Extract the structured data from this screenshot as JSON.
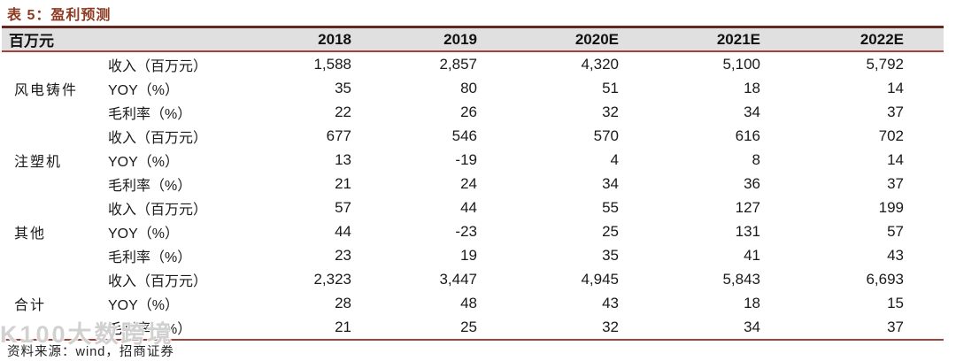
{
  "title": "表 5：盈利预测",
  "table": {
    "unit_header": "百万元",
    "year_headers": [
      "2018",
      "2019",
      "2020E",
      "2021E",
      "2022E"
    ],
    "groups": [
      {
        "name": "风电铸件",
        "rows": [
          {
            "metric": "收入（百万元）",
            "values": [
              "1,588",
              "2,857",
              "4,320",
              "5,100",
              "5,792"
            ]
          },
          {
            "metric": "YOY（%）",
            "values": [
              "35",
              "80",
              "51",
              "18",
              "14"
            ]
          },
          {
            "metric": "毛利率（%）",
            "values": [
              "22",
              "26",
              "32",
              "34",
              "37"
            ]
          }
        ]
      },
      {
        "name": "注塑机",
        "rows": [
          {
            "metric": "收入（百万元）",
            "values": [
              "677",
              "546",
              "570",
              "616",
              "702"
            ]
          },
          {
            "metric": "YOY（%）",
            "values": [
              "13",
              "-19",
              "4",
              "8",
              "14"
            ]
          },
          {
            "metric": "毛利率（%）",
            "values": [
              "21",
              "24",
              "34",
              "36",
              "37"
            ]
          }
        ]
      },
      {
        "name": "其他",
        "rows": [
          {
            "metric": "收入（百万元）",
            "values": [
              "57",
              "44",
              "55",
              "127",
              "199"
            ]
          },
          {
            "metric": "YOY（%）",
            "values": [
              "44",
              "-23",
              "25",
              "131",
              "57"
            ]
          },
          {
            "metric": "毛利率（%）",
            "values": [
              "23",
              "19",
              "35",
              "41",
              "43"
            ]
          }
        ]
      },
      {
        "name": "合计",
        "rows": [
          {
            "metric": "收入（百万元）",
            "values": [
              "2,323",
              "3,447",
              "4,945",
              "5,843",
              "6,693"
            ]
          },
          {
            "metric": "YOY（%）",
            "values": [
              "28",
              "48",
              "43",
              "18",
              "15"
            ]
          },
          {
            "metric": "毛利率（%）",
            "values": [
              "21",
              "25",
              "32",
              "34",
              "37"
            ]
          }
        ]
      }
    ]
  },
  "footer": {
    "source": "资料来源：wind，招商证券"
  },
  "watermark": "K100大数跨境",
  "colors": {
    "title_accent": "#8E3B22",
    "border_heavy": "#63281F",
    "border_light": "#9E443B",
    "header_bg": "#E0E0E0",
    "text": "#1A1A1A"
  }
}
